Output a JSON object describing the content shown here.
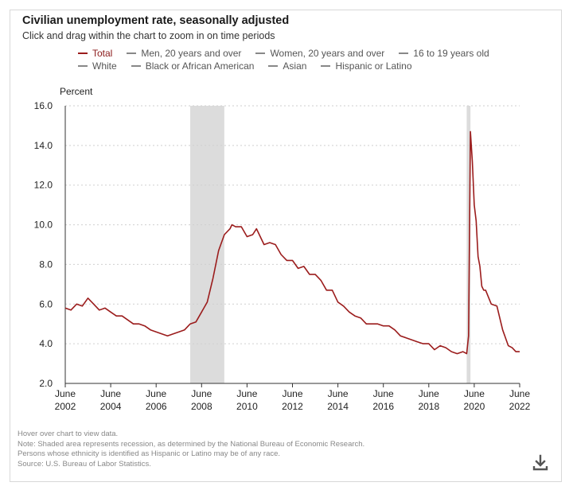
{
  "title": "Civilian unemployment rate, seasonally adjusted",
  "subtitle": "Click and drag within the chart to zoom in on time periods",
  "legend": {
    "row1": [
      "Total",
      "Men, 20 years and over",
      "Women, 20 years and over",
      "16 to 19 years old"
    ],
    "row2": [
      "White",
      "Black or African American",
      "Asian",
      "Hispanic or Latino"
    ],
    "active": "Total"
  },
  "colors": {
    "total": "#9b1c1c",
    "grid": "#cfcfcf",
    "recession": "#dcdcdc",
    "legend_inactive": "#888888"
  },
  "notes": [
    "Hover over chart to view data.",
    "Note: Shaded area represents recession, as determined by the National Bureau of Economic Research.",
    "Persons whose ethnicity is identified as Hispanic or Latino may be of any race.",
    "Source: U.S. Bureau of Labor Statistics."
  ],
  "download_icon": "download-icon",
  "chart_data": {
    "type": "line",
    "title": "Civilian unemployment rate, seasonally adjusted",
    "ylabel": "Percent",
    "xlabel": "",
    "ylim": [
      2.0,
      16.0
    ],
    "yticks": [
      "2.0",
      "4.0",
      "6.0",
      "8.0",
      "10.0",
      "12.0",
      "14.0",
      "16.0"
    ],
    "xticks": [
      [
        "June",
        "2002"
      ],
      [
        "June",
        "2004"
      ],
      [
        "June",
        "2006"
      ],
      [
        "June",
        "2008"
      ],
      [
        "June",
        "2010"
      ],
      [
        "June",
        "2012"
      ],
      [
        "June",
        "2014"
      ],
      [
        "June",
        "2016"
      ],
      [
        "June",
        "2018"
      ],
      [
        "June",
        "2020"
      ],
      [
        "June",
        "2022"
      ]
    ],
    "xlim": [
      "2002-06",
      "2022-06"
    ],
    "grid": "horizontal dotted",
    "recessions": [
      [
        "2007-12",
        "2009-06"
      ],
      [
        "2020-02",
        "2020-04"
      ]
    ],
    "series": [
      {
        "name": "Total",
        "x": [
          "2002-06",
          "2002-09",
          "2002-12",
          "2003-03",
          "2003-06",
          "2003-09",
          "2003-12",
          "2004-03",
          "2004-06",
          "2004-09",
          "2004-12",
          "2005-03",
          "2005-06",
          "2005-09",
          "2005-12",
          "2006-03",
          "2006-06",
          "2006-09",
          "2006-12",
          "2007-03",
          "2007-06",
          "2007-09",
          "2007-12",
          "2008-03",
          "2008-06",
          "2008-09",
          "2008-12",
          "2009-03",
          "2009-06",
          "2009-09",
          "2009-10",
          "2009-12",
          "2010-03",
          "2010-06",
          "2010-09",
          "2010-11",
          "2011-03",
          "2011-06",
          "2011-09",
          "2011-12",
          "2012-03",
          "2012-06",
          "2012-09",
          "2012-12",
          "2013-03",
          "2013-06",
          "2013-09",
          "2013-12",
          "2014-03",
          "2014-06",
          "2014-09",
          "2014-12",
          "2015-03",
          "2015-06",
          "2015-09",
          "2015-12",
          "2016-03",
          "2016-06",
          "2016-09",
          "2016-12",
          "2017-03",
          "2017-06",
          "2017-09",
          "2017-12",
          "2018-03",
          "2018-06",
          "2018-09",
          "2018-12",
          "2019-03",
          "2019-06",
          "2019-09",
          "2019-12",
          "2020-02",
          "2020-03",
          "2020-04",
          "2020-05",
          "2020-06",
          "2020-07",
          "2020-08",
          "2020-09",
          "2020-10",
          "2020-11",
          "2020-12",
          "2021-03",
          "2021-06",
          "2021-09",
          "2021-12",
          "2022-02",
          "2022-04",
          "2022-06"
        ],
        "y": [
          5.8,
          5.7,
          6.0,
          5.9,
          6.3,
          6.0,
          5.7,
          5.8,
          5.6,
          5.4,
          5.4,
          5.2,
          5.0,
          5.0,
          4.9,
          4.7,
          4.6,
          4.5,
          4.4,
          4.5,
          4.6,
          4.7,
          5.0,
          5.1,
          5.6,
          6.1,
          7.3,
          8.7,
          9.5,
          9.8,
          10.0,
          9.9,
          9.9,
          9.4,
          9.5,
          9.8,
          9.0,
          9.1,
          9.0,
          8.5,
          8.2,
          8.2,
          7.8,
          7.9,
          7.5,
          7.5,
          7.2,
          6.7,
          6.7,
          6.1,
          5.9,
          5.6,
          5.4,
          5.3,
          5.0,
          5.0,
          5.0,
          4.9,
          4.9,
          4.7,
          4.4,
          4.3,
          4.2,
          4.1,
          4.0,
          4.0,
          3.7,
          3.9,
          3.8,
          3.6,
          3.5,
          3.6,
          3.5,
          4.4,
          14.7,
          13.2,
          11.0,
          10.2,
          8.4,
          7.9,
          6.9,
          6.7,
          6.7,
          6.0,
          5.9,
          4.7,
          3.9,
          3.8,
          3.6,
          3.6
        ]
      }
    ]
  }
}
